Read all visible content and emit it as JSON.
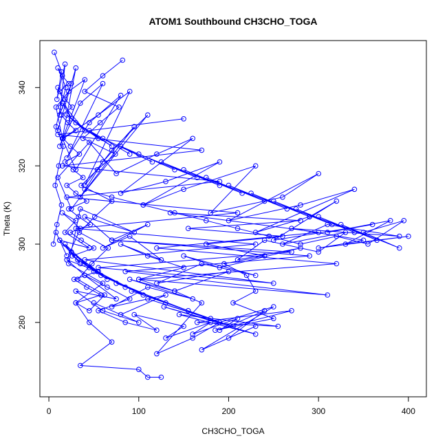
{
  "chart_data": {
    "type": "scatter",
    "title": "ATOM1 Southbound CH3CHO_TOGA",
    "xlabel": "CH3CHO_TOGA",
    "ylabel": "Theta (K)",
    "xlim": [
      -10,
      420
    ],
    "ylim": [
      261,
      352
    ],
    "x_ticks": [
      0,
      100,
      200,
      300,
      400
    ],
    "y_ticks": [
      280,
      300,
      320,
      340
    ],
    "grid": false,
    "legend": "none",
    "point_style": "open-circle",
    "series_color": "#0000ff",
    "series": [
      {
        "style": "lines+points",
        "x": [
          6,
          14,
          9,
          18,
          12,
          25,
          10,
          30,
          15,
          8,
          22,
          40,
          12,
          35,
          60,
          20,
          45,
          80,
          30,
          15,
          55,
          90,
          40,
          70,
          110,
          35,
          60,
          95,
          25,
          10,
          45,
          75,
          120,
          160,
          80,
          130,
          190,
          105,
          150,
          230,
          180,
          260,
          300,
          200,
          280,
          340,
          230,
          290,
          320,
          250,
          360,
          310,
          380,
          330,
          400,
          300,
          350,
          270,
          390,
          310,
          260,
          330,
          300,
          240,
          210,
          280,
          190,
          150,
          230,
          170,
          120,
          200,
          140,
          90,
          160,
          110,
          70,
          130,
          80,
          50,
          100,
          60,
          30,
          75,
          40,
          20,
          55,
          25,
          12,
          45,
          18,
          30,
          15,
          35,
          20,
          40,
          65,
          90,
          55,
          85,
          120,
          95,
          150,
          130,
          180,
          160,
          210,
          190,
          240,
          200,
          230,
          170,
          250,
          190,
          160,
          120,
          170,
          140,
          100,
          150,
          110,
          80,
          125,
          90,
          60,
          110,
          70,
          40,
          95,
          35,
          22,
          60,
          30,
          45,
          70,
          35,
          100,
          110,
          125
        ],
        "y": [
          349,
          344,
          337,
          346,
          333,
          341,
          329,
          345,
          327,
          335,
          339,
          342,
          325,
          336,
          341,
          322,
          331,
          338,
          319,
          327,
          333,
          339,
          315,
          324,
          333,
          312,
          321,
          330,
          309,
          317,
          326,
          318,
          323,
          327,
          313,
          316,
          321,
          310,
          314,
          320,
          308,
          312,
          318,
          306,
          310,
          314,
          303,
          307,
          311,
          301,
          305,
          303,
          306,
          300,
          302,
          299,
          301,
          304,
          302,
          305,
          300,
          303,
          298,
          301,
          296,
          299,
          294,
          297,
          292,
          295,
          290,
          293,
          288,
          291,
          286,
          289,
          284,
          287,
          282,
          285,
          280,
          283,
          288,
          286,
          292,
          296,
          293,
          298,
          301,
          299,
          303,
          306,
          308,
          304,
          296,
          292,
          289,
          286,
          283,
          280,
          278,
          282,
          279,
          276,
          280,
          277,
          281,
          278,
          283,
          276,
          279,
          273,
          284,
          280,
          276,
          272,
          285,
          288,
          291,
          294,
          297,
          300,
          296,
          302,
          299,
          305,
          301,
          307,
          303,
          309,
          295,
          290,
          285,
          280,
          275,
          269,
          268,
          266,
          266
        ]
      },
      {
        "style": "lines+points",
        "x": [
          10,
          25,
          15,
          40,
          20,
          55,
          30,
          70,
          45,
          90,
          60,
          115,
          80,
          140,
          100,
          165,
          125,
          190,
          150,
          215,
          175,
          240,
          200,
          265,
          225,
          290,
          250,
          315,
          275,
          340,
          300,
          365,
          325,
          390,
          350,
          395,
          355,
          320,
          280,
          245,
          210,
          175,
          140,
          105,
          70,
          40
        ],
        "y": [
          340,
          332,
          336,
          329,
          333,
          327,
          331,
          325,
          329,
          323,
          327,
          321,
          325,
          319,
          323,
          317,
          321,
          315,
          319,
          313,
          317,
          311,
          315,
          309,
          313,
          307,
          311,
          305,
          309,
          303,
          307,
          301,
          305,
          299,
          303,
          306,
          300,
          302,
          300,
          302,
          304,
          306,
          308,
          310,
          312,
          314
        ]
      },
      {
        "style": "lines+points",
        "x": [
          8,
          20,
          12,
          35,
          18,
          50,
          25,
          65,
          32,
          85,
          45,
          105,
          58,
          130,
          75,
          155,
          92,
          180,
          110,
          205,
          128,
          230,
          145,
          255,
          165,
          270,
          185,
          250,
          205,
          230,
          220,
          195,
          240,
          175,
          260,
          155,
          280,
          135,
          300,
          120,
          320,
          100,
          310,
          85,
          290,
          70,
          270,
          55,
          250,
          40,
          230,
          30,
          210,
          20,
          190,
          15,
          170,
          10,
          150
        ],
        "y": [
          303,
          297,
          301,
          295,
          300,
          293,
          298,
          291,
          296,
          289,
          294,
          287,
          292,
          285,
          290,
          283,
          288,
          281,
          286,
          279,
          284,
          277,
          282,
          279,
          280,
          283,
          278,
          281,
          285,
          288,
          292,
          295,
          297,
          300,
          302,
          304,
          306,
          308,
          303,
          299,
          295,
          291,
          287,
          293,
          297,
          301,
          298,
          294,
          290,
          296,
          300,
          304,
          308,
          312,
          316,
          320,
          324,
          328,
          332
        ]
      },
      {
        "style": "lines+points",
        "x": [
          5,
          9,
          14,
          7,
          11,
          16,
          8,
          13,
          19,
          10,
          15,
          22,
          12,
          18,
          26,
          14,
          21,
          30,
          16,
          24,
          34,
          18,
          27,
          38,
          20,
          30,
          42,
          22,
          33,
          46,
          24,
          36,
          50,
          26,
          39,
          54,
          28,
          42,
          58,
          30,
          45,
          62,
          32,
          48,
          66,
          34,
          51,
          70,
          36,
          54,
          74,
          38,
          57,
          78,
          40,
          60,
          82
        ],
        "y": [
          300,
          305,
          310,
          315,
          320,
          325,
          330,
          335,
          340,
          345,
          343,
          341,
          339,
          337,
          335,
          333,
          331,
          329,
          327,
          325,
          323,
          321,
          319,
          317,
          315,
          313,
          311,
          309,
          307,
          305,
          303,
          301,
          299,
          297,
          295,
          293,
          291,
          289,
          287,
          285,
          283,
          287,
          291,
          295,
          299,
          303,
          307,
          311,
          315,
          319,
          323,
          327,
          331,
          335,
          339,
          343,
          347
        ]
      }
    ]
  }
}
